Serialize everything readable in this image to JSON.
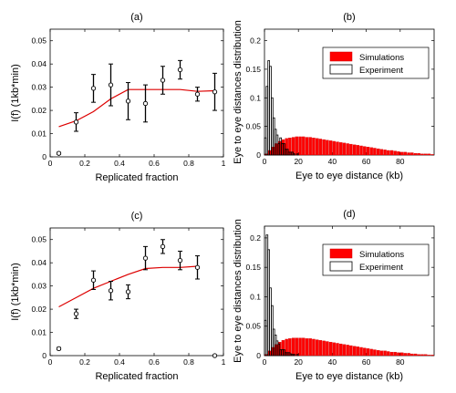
{
  "chart_data": [
    {
      "panel": "(a)",
      "type": "scatter",
      "xlabel": "Replicated fraction",
      "ylabel": "I(f) (1kb*min)",
      "xlim": [
        0,
        1
      ],
      "ylim": [
        0,
        0.055
      ],
      "xticks": [
        0,
        0.2,
        0.4,
        0.6,
        0.8,
        1
      ],
      "yticks": [
        0,
        0.01,
        0.02,
        0.03,
        0.04,
        0.05
      ],
      "xtick_labels": [
        "0",
        "0.2",
        "0.4",
        "0.6",
        "0.8",
        "1"
      ],
      "ytick_labels": [
        "0",
        "0.01",
        "0.02",
        "0.03",
        "0.04",
        "0.05"
      ],
      "points": [
        {
          "x": 0.05,
          "y": 0.0015,
          "err": 0.0004
        },
        {
          "x": 0.15,
          "y": 0.015,
          "err": 0.004
        },
        {
          "x": 0.25,
          "y": 0.0295,
          "err": 0.006
        },
        {
          "x": 0.35,
          "y": 0.031,
          "err": 0.009
        },
        {
          "x": 0.45,
          "y": 0.024,
          "err": 0.008
        },
        {
          "x": 0.55,
          "y": 0.023,
          "err": 0.008
        },
        {
          "x": 0.65,
          "y": 0.033,
          "err": 0.006
        },
        {
          "x": 0.75,
          "y": 0.0375,
          "err": 0.004
        },
        {
          "x": 0.85,
          "y": 0.027,
          "err": 0.003
        },
        {
          "x": 0.95,
          "y": 0.028,
          "err": 0.008
        }
      ],
      "fit_curve": [
        [
          0.05,
          0.013
        ],
        [
          0.15,
          0.0155
        ],
        [
          0.25,
          0.0195
        ],
        [
          0.35,
          0.025
        ],
        [
          0.45,
          0.029
        ],
        [
          0.55,
          0.029
        ],
        [
          0.65,
          0.029
        ],
        [
          0.75,
          0.029
        ],
        [
          0.85,
          0.0282
        ],
        [
          0.95,
          0.0285
        ]
      ],
      "colors": {
        "fit": "#dd0000",
        "points": "#000000"
      }
    },
    {
      "panel": "(b)",
      "type": "bar",
      "xlabel": "Eye to eye distance (kb)",
      "ylabel": "Eye to eye distances distribution",
      "xlim": [
        0,
        100
      ],
      "ylim": [
        0,
        0.22
      ],
      "xticks": [
        0,
        20,
        40,
        60,
        80
      ],
      "yticks": [
        0,
        0.05,
        0.1,
        0.15,
        0.2
      ],
      "xtick_labels": [
        "0",
        "20",
        "40",
        "60",
        "80"
      ],
      "ytick_labels": [
        "0",
        "0.05",
        "0.1",
        "0.15",
        "0.2"
      ],
      "bin_width": 2,
      "legend": {
        "position": "top-right",
        "entries": [
          "Simulations",
          "Experiment"
        ]
      },
      "series": [
        {
          "name": "Simulations",
          "values": [
            0.002,
            0.008,
            0.014,
            0.02,
            0.024,
            0.027,
            0.029,
            0.03,
            0.031,
            0.032,
            0.032,
            0.032,
            0.031,
            0.031,
            0.03,
            0.029,
            0.028,
            0.027,
            0.026,
            0.025,
            0.024,
            0.023,
            0.022,
            0.021,
            0.02,
            0.019,
            0.018,
            0.017,
            0.016,
            0.015,
            0.014,
            0.013,
            0.012,
            0.011,
            0.01,
            0.009,
            0.008,
            0.008,
            0.007,
            0.006,
            0.005,
            0.005,
            0.004,
            0.004,
            0.003,
            0.003,
            0.002,
            0.002,
            0.002,
            0.001
          ]
        },
        {
          "name": "Experiment",
          "values": [
            0.03,
            0.12,
            0.165,
            0.155,
            0.1,
            0.065,
            0.045,
            0.035,
            0.02,
            0.03,
            0.02,
            0.02,
            0.01,
            0.01,
            0.005,
            0.005,
            0.005,
            0.002,
            0.0,
            0.002
          ]
        }
      ],
      "colors": {
        "Simulations": "#ff0000",
        "Experiment": "#000000"
      }
    },
    {
      "panel": "(c)",
      "type": "scatter",
      "xlabel": "Replicated fraction",
      "ylabel": "I(f) (1kb*min)",
      "xlim": [
        0,
        1
      ],
      "ylim": [
        0,
        0.055
      ],
      "xticks": [
        0,
        0.2,
        0.4,
        0.6,
        0.8,
        1
      ],
      "yticks": [
        0,
        0.01,
        0.02,
        0.03,
        0.04,
        0.05
      ],
      "xtick_labels": [
        "0",
        "0.2",
        "0.4",
        "0.6",
        "0.8",
        "1"
      ],
      "ytick_labels": [
        "0",
        "0.01",
        "0.02",
        "0.03",
        "0.04",
        "0.05"
      ],
      "points": [
        {
          "x": 0.05,
          "y": 0.003,
          "err": 0.0005
        },
        {
          "x": 0.15,
          "y": 0.018,
          "err": 0.002
        },
        {
          "x": 0.25,
          "y": 0.0325,
          "err": 0.004
        },
        {
          "x": 0.35,
          "y": 0.028,
          "err": 0.004
        },
        {
          "x": 0.45,
          "y": 0.0275,
          "err": 0.003
        },
        {
          "x": 0.55,
          "y": 0.042,
          "err": 0.005
        },
        {
          "x": 0.65,
          "y": 0.047,
          "err": 0.003
        },
        {
          "x": 0.75,
          "y": 0.041,
          "err": 0.004
        },
        {
          "x": 0.85,
          "y": 0.038,
          "err": 0.005
        },
        {
          "x": 0.95,
          "y": 0.0,
          "err": 0.0
        }
      ],
      "fit_curve": [
        [
          0.05,
          0.021
        ],
        [
          0.15,
          0.025
        ],
        [
          0.25,
          0.029
        ],
        [
          0.35,
          0.032
        ],
        [
          0.45,
          0.035
        ],
        [
          0.55,
          0.0375
        ],
        [
          0.65,
          0.038
        ],
        [
          0.75,
          0.038
        ],
        [
          0.85,
          0.0385
        ]
      ],
      "colors": {
        "fit": "#dd0000",
        "points": "#000000"
      }
    },
    {
      "panel": "(d)",
      "type": "bar",
      "xlabel": "Eye to eye distance (kb)",
      "ylabel": "Eye to eye distances distribution",
      "xlim": [
        0,
        100
      ],
      "ylim": [
        0,
        0.22
      ],
      "xticks": [
        0,
        20,
        40,
        60,
        80
      ],
      "yticks": [
        0,
        0.05,
        0.1,
        0.15,
        0.2
      ],
      "xtick_labels": [
        "0",
        "20",
        "40",
        "60",
        "80"
      ],
      "ytick_labels": [
        "0",
        "0.05",
        "0.1",
        "0.15",
        "0.2"
      ],
      "bin_width": 2,
      "legend": {
        "position": "top-right",
        "entries": [
          "Simulations",
          "Experiment"
        ]
      },
      "series": [
        {
          "name": "Simulations",
          "values": [
            0.002,
            0.008,
            0.014,
            0.019,
            0.023,
            0.026,
            0.028,
            0.029,
            0.03,
            0.03,
            0.03,
            0.03,
            0.029,
            0.029,
            0.028,
            0.027,
            0.026,
            0.025,
            0.024,
            0.023,
            0.022,
            0.021,
            0.02,
            0.019,
            0.018,
            0.017,
            0.016,
            0.015,
            0.014,
            0.013,
            0.012,
            0.011,
            0.01,
            0.009,
            0.008,
            0.008,
            0.007,
            0.006,
            0.006,
            0.005,
            0.005,
            0.004,
            0.004,
            0.003,
            0.003,
            0.002,
            0.002,
            0.002,
            0.001,
            0.001
          ]
        },
        {
          "name": "Experiment",
          "values": [
            0.06,
            0.205,
            0.18,
            0.115,
            0.085,
            0.045,
            0.035,
            0.025,
            0.02,
            0.01,
            0.01,
            0.01,
            0.005,
            0.005,
            0.005,
            0.003,
            0.002,
            0.002,
            0.0,
            0.002
          ]
        }
      ],
      "colors": {
        "Simulations": "#ff0000",
        "Experiment": "#000000"
      }
    }
  ]
}
